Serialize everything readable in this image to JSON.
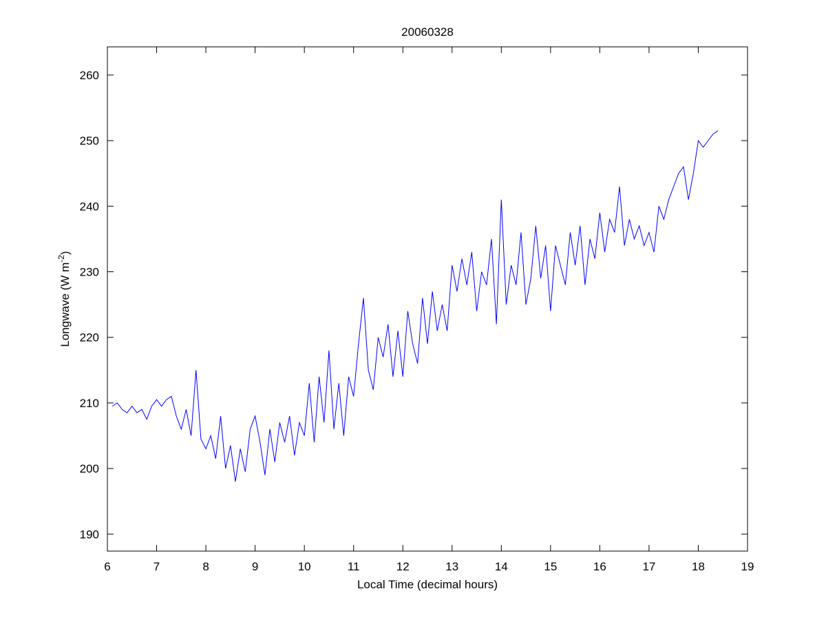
{
  "chart_data": {
    "type": "line",
    "title": "20060328",
    "xlabel": "Local Time (decimal hours)",
    "ylabel": {
      "main": "Longwave (W m",
      "superscript": "-2",
      "suffix": ")"
    },
    "xlim": [
      6,
      19
    ],
    "ylim": [
      187.4,
      264.3
    ],
    "xticks": [
      "6",
      "7",
      "8",
      "9",
      "10",
      "11",
      "12",
      "13",
      "14",
      "15",
      "16",
      "17",
      "18",
      "19"
    ],
    "yticks": [
      "190",
      "200",
      "210",
      "220",
      "230",
      "240",
      "250",
      "260"
    ],
    "grid": false,
    "series": [
      {
        "name": "Longwave",
        "color": "#0000ff",
        "x_start": 6.1,
        "x_step": 0.1,
        "values": [
          209.5,
          210,
          209,
          208.5,
          209.5,
          208.5,
          209,
          207.5,
          209.5,
          210.5,
          209.5,
          210.5,
          211,
          208,
          206,
          209,
          205,
          215,
          204.5,
          203,
          205,
          201.5,
          208,
          200,
          203.5,
          198,
          203,
          199.5,
          206,
          208,
          204,
          199,
          206,
          201,
          207,
          204,
          208,
          202,
          207,
          205,
          213,
          204,
          214,
          207,
          218,
          206,
          213,
          205,
          214,
          211,
          219,
          226,
          215,
          212,
          220,
          217,
          222,
          214,
          221,
          214,
          224,
          219,
          216,
          226,
          219,
          227,
          221,
          225,
          221,
          231,
          227,
          232,
          228,
          233,
          224,
          230,
          228,
          235,
          222,
          241,
          225,
          231,
          228,
          236,
          225,
          229,
          237,
          229,
          234,
          224,
          234,
          231,
          228,
          236,
          231,
          237,
          228,
          235,
          232,
          239,
          233,
          238,
          236,
          243,
          234,
          238,
          235,
          237,
          234,
          236,
          233,
          240,
          238,
          241,
          243,
          245,
          246,
          241,
          245,
          250,
          249,
          250,
          251,
          251.5
        ]
      }
    ]
  }
}
